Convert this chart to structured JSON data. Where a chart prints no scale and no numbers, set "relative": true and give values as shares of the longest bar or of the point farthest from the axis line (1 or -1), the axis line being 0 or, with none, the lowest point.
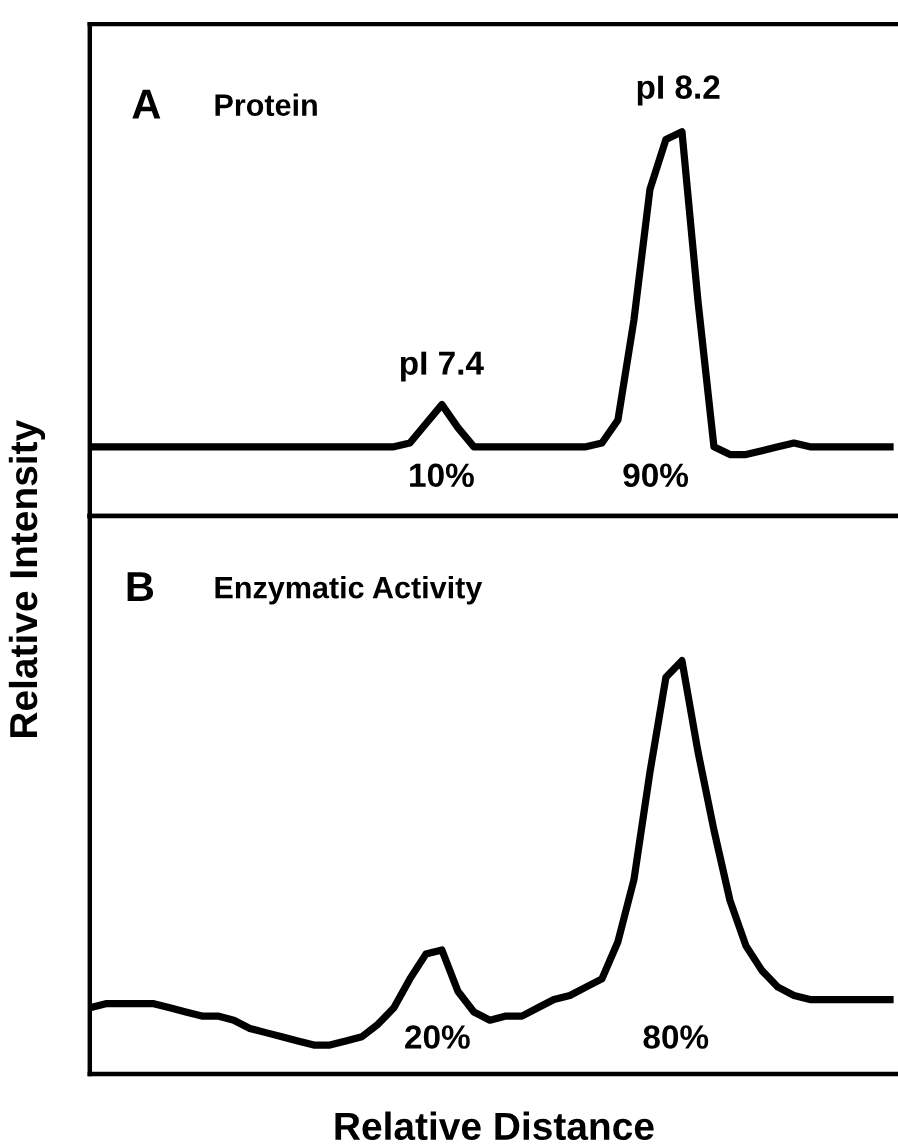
{
  "chart_data": [
    {
      "type": "line",
      "relative": true,
      "marker": "none",
      "line_style": "solid",
      "ylabel": "Relative Intensity",
      "annotations": [
        "A",
        "Protein",
        "pI 7.4",
        "10%",
        "pI 8.2",
        "90%"
      ],
      "categories": [
        null,
        null,
        null,
        null,
        null,
        null,
        null,
        null,
        null,
        null,
        null,
        null,
        null,
        null,
        null,
        null,
        null,
        null,
        null,
        null,
        null,
        null,
        null,
        null,
        null,
        null,
        null,
        null,
        null,
        null,
        null,
        null,
        null,
        null,
        null,
        null,
        null,
        null,
        null,
        null,
        null,
        null,
        null,
        null,
        null,
        null,
        null,
        null,
        null,
        null,
        null
      ],
      "series": [
        {
          "color": "#000000",
          "values": [
            0.18,
            0.18,
            0.18,
            0.18,
            0.18,
            0.18,
            0.18,
            0.18,
            0.18,
            0.18,
            0.18,
            0.18,
            0.18,
            0.18,
            0.18,
            0.18,
            0.18,
            0.18,
            0.18,
            0.18,
            0.19,
            0.24,
            0.29,
            0.23,
            0.18,
            0.18,
            0.18,
            0.18,
            0.18,
            0.18,
            0.18,
            0.18,
            0.19,
            0.25,
            0.51,
            0.85,
            0.98,
            1.0,
            0.56,
            0.18,
            0.16,
            0.16,
            0.17,
            0.18,
            0.19,
            0.18,
            0.18,
            0.18,
            0.18,
            0.18,
            0.18
          ]
        }
      ]
    },
    {
      "type": "line",
      "relative": true,
      "marker": "none",
      "line_style": "solid",
      "xlabel": "Relative Distance",
      "annotations": [
        "B",
        "Enzymatic Activity",
        "20%",
        "80%"
      ],
      "categories": [
        null,
        null,
        null,
        null,
        null,
        null,
        null,
        null,
        null,
        null,
        null,
        null,
        null,
        null,
        null,
        null,
        null,
        null,
        null,
        null,
        null,
        null,
        null,
        null,
        null,
        null,
        null,
        null,
        null,
        null,
        null,
        null,
        null,
        null,
        null,
        null,
        null,
        null,
        null,
        null,
        null,
        null,
        null,
        null,
        null,
        null,
        null,
        null,
        null,
        null,
        null
      ],
      "series": [
        {
          "color": "#000000",
          "values": [
            0.16,
            0.17,
            0.17,
            0.17,
            0.17,
            0.16,
            0.15,
            0.14,
            0.14,
            0.13,
            0.11,
            0.1,
            0.09,
            0.08,
            0.07,
            0.07,
            0.08,
            0.09,
            0.12,
            0.16,
            0.23,
            0.29,
            0.3,
            0.2,
            0.15,
            0.13,
            0.14,
            0.14,
            0.16,
            0.18,
            0.19,
            0.21,
            0.23,
            0.32,
            0.47,
            0.73,
            0.96,
            1.0,
            0.78,
            0.59,
            0.42,
            0.31,
            0.25,
            0.21,
            0.19,
            0.18,
            0.18,
            0.18,
            0.18,
            0.18,
            0.18
          ]
        }
      ]
    }
  ]
}
